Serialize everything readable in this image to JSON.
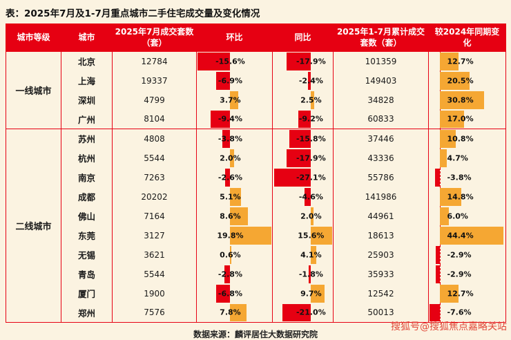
{
  "title": "表：2025年7月及1-7月重点城市二手住宅成交量及变化情况",
  "source": "数据来源：麟评居住大数据研究院",
  "watermark": "搜狐号@搜狐焦点嘉略关站",
  "colors": {
    "red": "#e60012",
    "orange": "#f5a733",
    "background": "#fbf3e1",
    "header_text": "#ffffff",
    "text": "#1a1a1a"
  },
  "chart_data": {
    "type": "table",
    "title": "2025年7月及1-7月重点城市二手住宅成交量及变化情况",
    "columns": [
      "城市等级",
      "城市",
      "2025年7月成交套数（套）",
      "环比",
      "同比",
      "2025年1-7月累计成交套数（套）",
      "较2024年同期变化"
    ],
    "bar_columns": {
      "mom": {
        "min": -16,
        "max": 20,
        "bar_style": "neg-red-left, pos-orange-right"
      },
      "yoy": {
        "min": -28,
        "max": 16,
        "bar_style": "neg-red-left, pos-orange-right"
      },
      "cum_change": {
        "min": -8,
        "max": 46,
        "bar_style": "dashed-axis, neg-red-left, pos-orange-right"
      }
    },
    "groups": [
      {
        "tier": "一线城市",
        "rows": [
          {
            "city": "北京",
            "jul_sales": 12784,
            "mom": -15.6,
            "yoy": -17.9,
            "cum_sales": 101359,
            "cum_change": 12.7
          },
          {
            "city": "上海",
            "jul_sales": 19337,
            "mom": -6.9,
            "yoy": -2.4,
            "cum_sales": 149403,
            "cum_change": 20.5
          },
          {
            "city": "深圳",
            "jul_sales": 4799,
            "mom": 3.7,
            "yoy": 2.5,
            "cum_sales": 34828,
            "cum_change": 30.8
          },
          {
            "city": "广州",
            "jul_sales": 8104,
            "mom": -9.4,
            "yoy": -9.2,
            "cum_sales": 60833,
            "cum_change": 17.0
          }
        ]
      },
      {
        "tier": "二线城市",
        "rows": [
          {
            "city": "苏州",
            "jul_sales": 4808,
            "mom": -3.8,
            "yoy": -15.8,
            "cum_sales": 37446,
            "cum_change": 10.8
          },
          {
            "city": "杭州",
            "jul_sales": 5544,
            "mom": 2.0,
            "yoy": -17.9,
            "cum_sales": 43336,
            "cum_change": 4.7
          },
          {
            "city": "南京",
            "jul_sales": 7263,
            "mom": -2.6,
            "yoy": -27.1,
            "cum_sales": 55786,
            "cum_change": -3.8
          },
          {
            "city": "成都",
            "jul_sales": 20202,
            "mom": 5.1,
            "yoy": -4.6,
            "cum_sales": 141986,
            "cum_change": 14.8
          },
          {
            "city": "佛山",
            "jul_sales": 7164,
            "mom": 8.6,
            "yoy": 2.0,
            "cum_sales": 44961,
            "cum_change": 6.0
          },
          {
            "city": "东莞",
            "jul_sales": 3127,
            "mom": 19.8,
            "yoy": 15.6,
            "cum_sales": 18613,
            "cum_change": 44.4
          },
          {
            "city": "无锡",
            "jul_sales": 3621,
            "mom": 0.6,
            "yoy": 4.1,
            "cum_sales": 25903,
            "cum_change": -2.9
          },
          {
            "city": "青岛",
            "jul_sales": 5544,
            "mom": -2.8,
            "yoy": -1.8,
            "cum_sales": 35933,
            "cum_change": -2.9
          },
          {
            "city": "厦门",
            "jul_sales": 1900,
            "mom": -6.8,
            "yoy": 9.7,
            "cum_sales": 12542,
            "cum_change": 12.7
          },
          {
            "city": "郑州",
            "jul_sales": 7576,
            "mom": 7.8,
            "yoy": -21.0,
            "cum_sales": 50013,
            "cum_change": -7.6
          }
        ]
      }
    ]
  }
}
